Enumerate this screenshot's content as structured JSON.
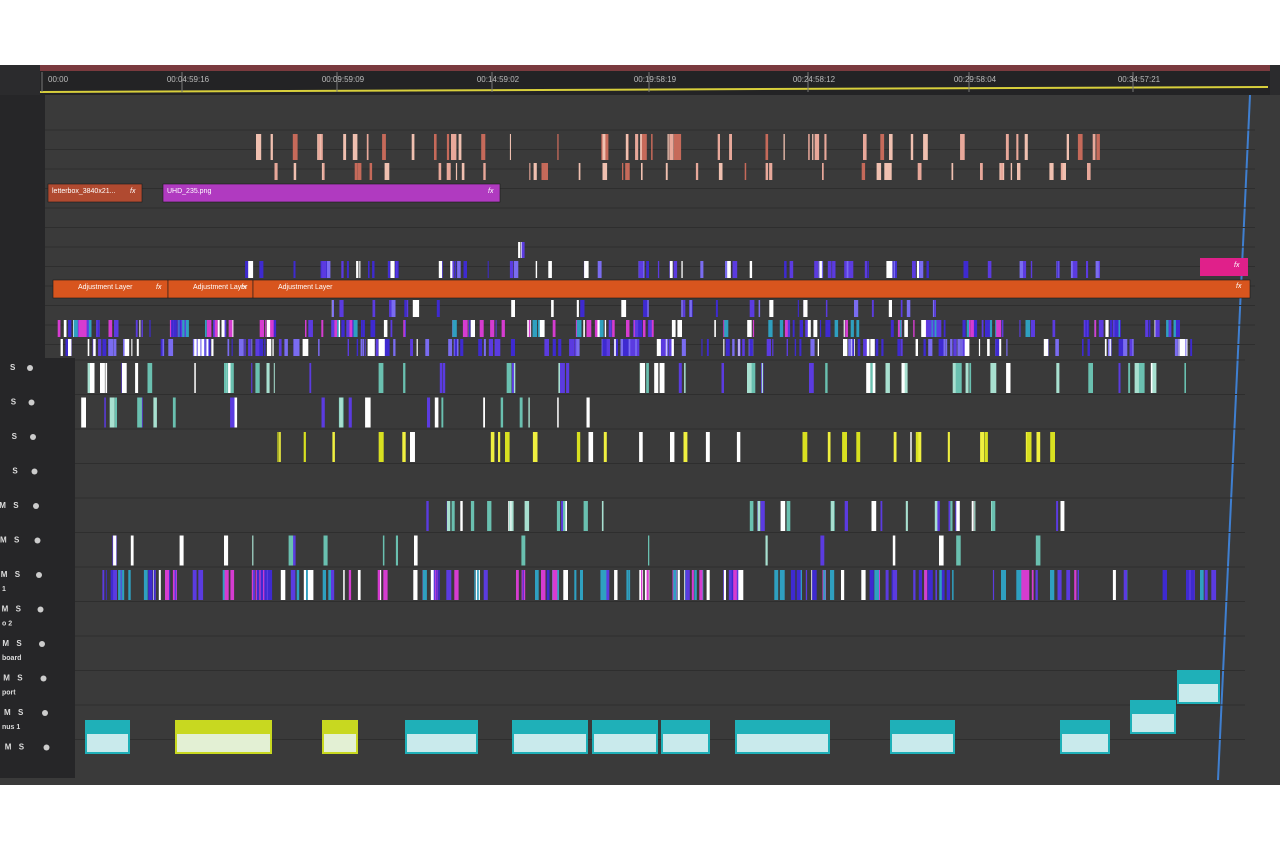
{
  "ruler": {
    "timecodes": [
      "00:00",
      "00:04:59:16",
      "00:09:59:09",
      "00:14:59:02",
      "00:19:58:19",
      "00:24:58:12",
      "00:29:58:04",
      "00:34:57:21"
    ]
  },
  "clips": [
    {
      "label": "letterbox_3840x21...",
      "badge": "fx"
    },
    {
      "label": "UHD_235.png",
      "badge": "fx"
    },
    {
      "label": "Adjustment Layer",
      "badge": "fx"
    },
    {
      "label": "Adjustment Layer",
      "badge": "fx"
    },
    {
      "label": "Adjustment Layer"
    }
  ],
  "end_clip_badges": [
    "fx",
    "fx"
  ],
  "audio_tracks": [
    {
      "buttons": [
        "S"
      ]
    },
    {
      "buttons": [
        "S"
      ]
    },
    {
      "buttons": [
        "S"
      ]
    },
    {
      "buttons": [
        "S"
      ]
    },
    {
      "buttons": [
        "M",
        "S"
      ]
    },
    {
      "buttons": [
        "M",
        "S"
      ]
    },
    {
      "buttons": [
        "M",
        "S"
      ],
      "name": "1"
    },
    {
      "buttons": [
        "M",
        "S"
      ],
      "name": "o 2"
    },
    {
      "buttons": [
        "M",
        "S"
      ],
      "name": "board"
    },
    {
      "buttons": [
        "M",
        "S"
      ],
      "name": "port"
    },
    {
      "buttons": [
        "M",
        "S"
      ],
      "name": "nus 1"
    },
    {
      "buttons": [
        "M",
        "S"
      ]
    }
  ]
}
